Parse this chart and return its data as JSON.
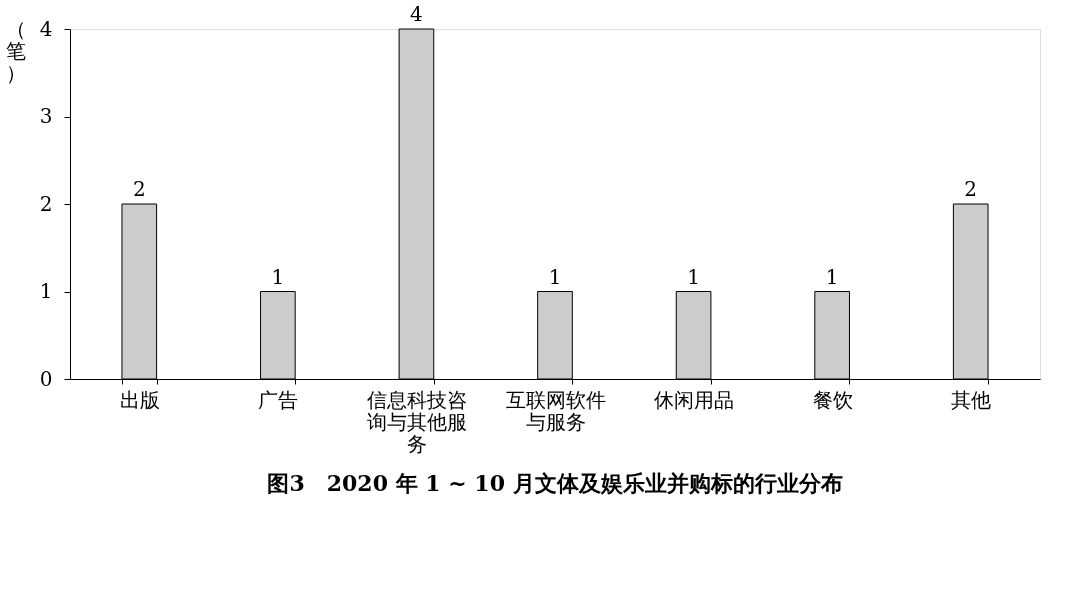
{
  "chart_data": {
    "type": "bar",
    "title": "图3　2020 年 1 ~ 10 月文体及娱乐业并购标的行业分布",
    "ylabel": "（笔）",
    "categories": [
      "出版",
      "广告",
      "信息科技咨询与其他服务",
      "互联网软件与服务",
      "休闲用品",
      "餐饮",
      "其他"
    ],
    "values": [
      2,
      1,
      4,
      1,
      1,
      1,
      2
    ],
    "color": "#cccccc",
    "ylim": [
      0,
      4
    ],
    "yticks": [
      0,
      1,
      2,
      3,
      4
    ],
    "grid": false,
    "data_labels": true
  }
}
